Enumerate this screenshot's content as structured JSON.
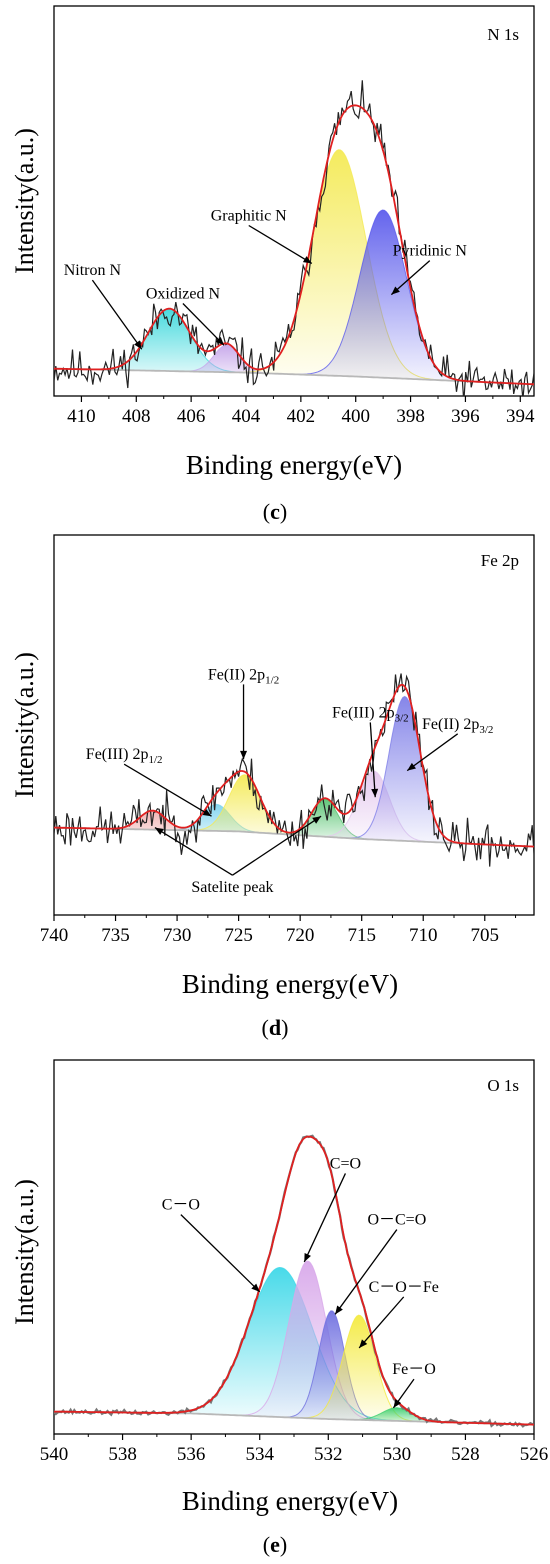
{
  "chart_data": [
    {
      "type": "line",
      "panel": "c",
      "caption_letter": "c",
      "corner_label": "N 1s",
      "xlabel": "Binding energy(eV)",
      "ylabel": "Intensity(a.u.)",
      "xlim": [
        411,
        393.5
      ],
      "ylim": [
        0,
        100
      ],
      "x_ticks": [
        410,
        408,
        406,
        404,
        402,
        400,
        398,
        396,
        394
      ],
      "baseline": [
        [
          411,
          7
        ],
        [
          404,
          6
        ],
        [
          400,
          5
        ],
        [
          393.5,
          3
        ]
      ],
      "peaks": [
        {
          "name": "Nitron N",
          "center": 406.8,
          "height": 16,
          "fwhm": 1.8,
          "fill": "#3fd8dc"
        },
        {
          "name": "Oxidized N",
          "center": 404.7,
          "height": 7,
          "fwhm": 1.1,
          "fill": "#c6a6ea"
        },
        {
          "name": "Graphitic N",
          "center": 400.6,
          "height": 58,
          "fwhm": 2.3,
          "fill": "#f4ea55"
        },
        {
          "name": "Pyridinic N",
          "center": 399.0,
          "height": 43,
          "fwhm": 2.0,
          "fill": "#5c5cec"
        }
      ],
      "annotations": [
        {
          "text": "Nitron N",
          "x": 409.6,
          "y": 31,
          "ax": 407.8,
          "ay": 12
        },
        {
          "text": "Oxidized N",
          "x": 406.3,
          "y": 25,
          "ax": 404.8,
          "ay": 13
        },
        {
          "text": "Graphitic N",
          "x": 403.9,
          "y": 45,
          "ax": 401.6,
          "ay": 34
        },
        {
          "text": "Pyridinic N",
          "x": 397.3,
          "y": 36,
          "ax": 398.7,
          "ay": 26
        }
      ]
    },
    {
      "type": "line",
      "panel": "d",
      "caption_letter": "d",
      "corner_label": "Fe 2p",
      "xlabel": "Binding energy(eV)",
      "ylabel": "Intensity(a.u.)",
      "xlim": [
        740,
        701
      ],
      "ylim": [
        0,
        100
      ],
      "x_ticks": [
        740,
        735,
        730,
        725,
        720,
        715,
        710,
        705
      ],
      "baseline": [
        [
          740,
          23
        ],
        [
          725,
          22
        ],
        [
          715,
          20
        ],
        [
          701,
          18
        ]
      ],
      "peaks": [
        {
          "name": "Satelite peak",
          "center": 732.0,
          "height": 5,
          "fwhm": 2.5,
          "fill": "#f0b0b0"
        },
        {
          "name": "Fe(III) 2p1/2",
          "center": 726.8,
          "height": 7,
          "fwhm": 2.6,
          "fill": "#7fd4ee"
        },
        {
          "name": "Fe(II) 2p1/2",
          "center": 724.5,
          "height": 15,
          "fwhm": 3.0,
          "fill": "#f4ea55"
        },
        {
          "name": "Satelite peak",
          "center": 718.0,
          "height": 10,
          "fwhm": 2.5,
          "fill": "#58c472"
        },
        {
          "name": "Fe(III) 2p3/2",
          "center": 714.0,
          "height": 18,
          "fwhm": 3.0,
          "fill": "#e4c8ee"
        },
        {
          "name": "Fe(II) 2p3/2",
          "center": 711.5,
          "height": 38,
          "fwhm": 3.0,
          "fill": "#7f7fe8"
        }
      ],
      "annotations": [
        {
          "text": "Fe(III) 2p",
          "sub": "1/2",
          "x": 734.3,
          "y": 41,
          "ax": 727.2,
          "ay": 26
        },
        {
          "text": "Fe(II) 2p",
          "sub": "1/2",
          "x": 724.6,
          "y": 62,
          "ax": 724.6,
          "ay": 41
        },
        {
          "text": "Fe(III) 2p",
          "sub": "3/2",
          "x": 714.3,
          "y": 52,
          "ax": 713.9,
          "ay": 31
        },
        {
          "text": "Fe(II) 2p",
          "sub": "3/2",
          "x": 707.2,
          "y": 49,
          "ax": 711.3,
          "ay": 38
        },
        {
          "text": "Satelite peak",
          "x": 725.5,
          "y": 6,
          "ax": 731.8,
          "ay": 23,
          "ax2": 718.3,
          "ay2": 26
        }
      ]
    },
    {
      "type": "line",
      "panel": "e",
      "caption_letter": "e",
      "corner_label": "O 1s",
      "xlabel": "Binding energy(eV)",
      "ylabel": "Intensity(a.u.)",
      "xlim": [
        540,
        526
      ],
      "ylim": [
        0,
        100
      ],
      "x_ticks": [
        540,
        538,
        536,
        534,
        532,
        530,
        528,
        526
      ],
      "baseline": [
        [
          540,
          6
        ],
        [
          536,
          5.5
        ],
        [
          532,
          4
        ],
        [
          526,
          2.5
        ]
      ],
      "peaks": [
        {
          "name": "C-O",
          "center": 533.4,
          "height": 40,
          "fwhm": 2.2,
          "fill": "#3fd8e8"
        },
        {
          "name": "C=O",
          "center": 532.6,
          "height": 42,
          "fwhm": 1.3,
          "fill": "#d8a8ea"
        },
        {
          "name": "O-C=O",
          "center": 531.9,
          "height": 29,
          "fwhm": 0.9,
          "fill": "#7070e0"
        },
        {
          "name": "C-O-Fe",
          "center": 531.1,
          "height": 28,
          "fwhm": 1.1,
          "fill": "#f4ea40"
        },
        {
          "name": "Fe-O",
          "center": 530.0,
          "height": 3.5,
          "fwhm": 1.0,
          "fill": "#40d070"
        }
      ],
      "annotations": [
        {
          "text": "C－O",
          "x": 536.3,
          "y": 60,
          "ax": 534.0,
          "ay": 38
        },
        {
          "text": "C=O",
          "x": 531.5,
          "y": 71,
          "ax": 532.7,
          "ay": 46
        },
        {
          "text": "O－C=O",
          "x": 530.0,
          "y": 56,
          "ax": 531.8,
          "ay": 32
        },
        {
          "text": "C－O－Fe",
          "x": 529.8,
          "y": 38,
          "ax": 531.1,
          "ay": 23
        },
        {
          "text": "Fe－O",
          "x": 529.5,
          "y": 16,
          "ax": 530.1,
          "ay": 7
        }
      ]
    }
  ]
}
